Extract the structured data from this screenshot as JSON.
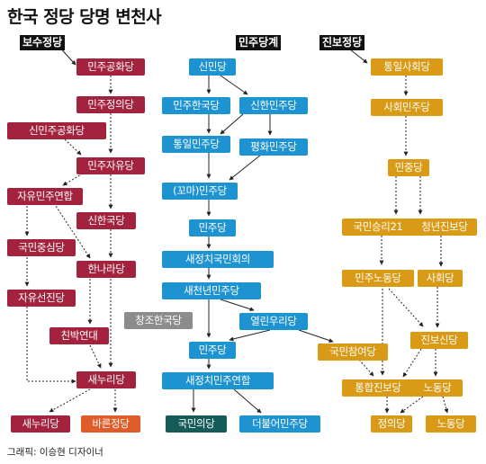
{
  "title": "한국 정당 당명 변천사",
  "categories": {
    "conservative": "보수정당",
    "democratic": "민주당계",
    "progressive": "진보정당"
  },
  "colors": {
    "conservative": "#a3233f",
    "democratic": "#1e93d2",
    "progressive": "#d99a16",
    "neutral": "#8c8c8c",
    "peoples_party": "#145b59",
    "bareun": "#e05c28"
  },
  "parties": {
    "c1": "민주공화당",
    "c2": "민주정의당",
    "c3": "신민주공화당",
    "c4": "민주자유당",
    "c5": "자유민주연합",
    "c6": "신한국당",
    "c7": "국민중심당",
    "c8": "한나라당",
    "c9": "자유선진당",
    "c10": "친박연대",
    "c11": "새누리당",
    "c12": "새누리당",
    "c13": "바른정당",
    "d1": "신민당",
    "d2": "민주한국당",
    "d3": "신한민주당",
    "d4": "통일민주당",
    "d5": "평화민주당",
    "d6": "(꼬마)민주당",
    "d7": "민주당",
    "d8": "새정치국민회의",
    "d9": "새천년민주당",
    "d10": "창조한국당",
    "d11": "열린우리당",
    "d12": "민주당",
    "d13": "새정치민주연합",
    "d14": "국민의당",
    "d15": "더불어민주당",
    "p1": "통일사회당",
    "p2": "사회민주당",
    "p3": "민중당",
    "p4": "국민승리21",
    "p5": "청년진보당",
    "p6": "민주노동당",
    "p7": "사회당",
    "p8": "국민참여당",
    "p9": "진보신당",
    "p10": "통합진보당",
    "p11": "노동당",
    "p12": "정의당",
    "p13": "노동당"
  },
  "credit": "그래픽: 이승현 디자이너"
}
